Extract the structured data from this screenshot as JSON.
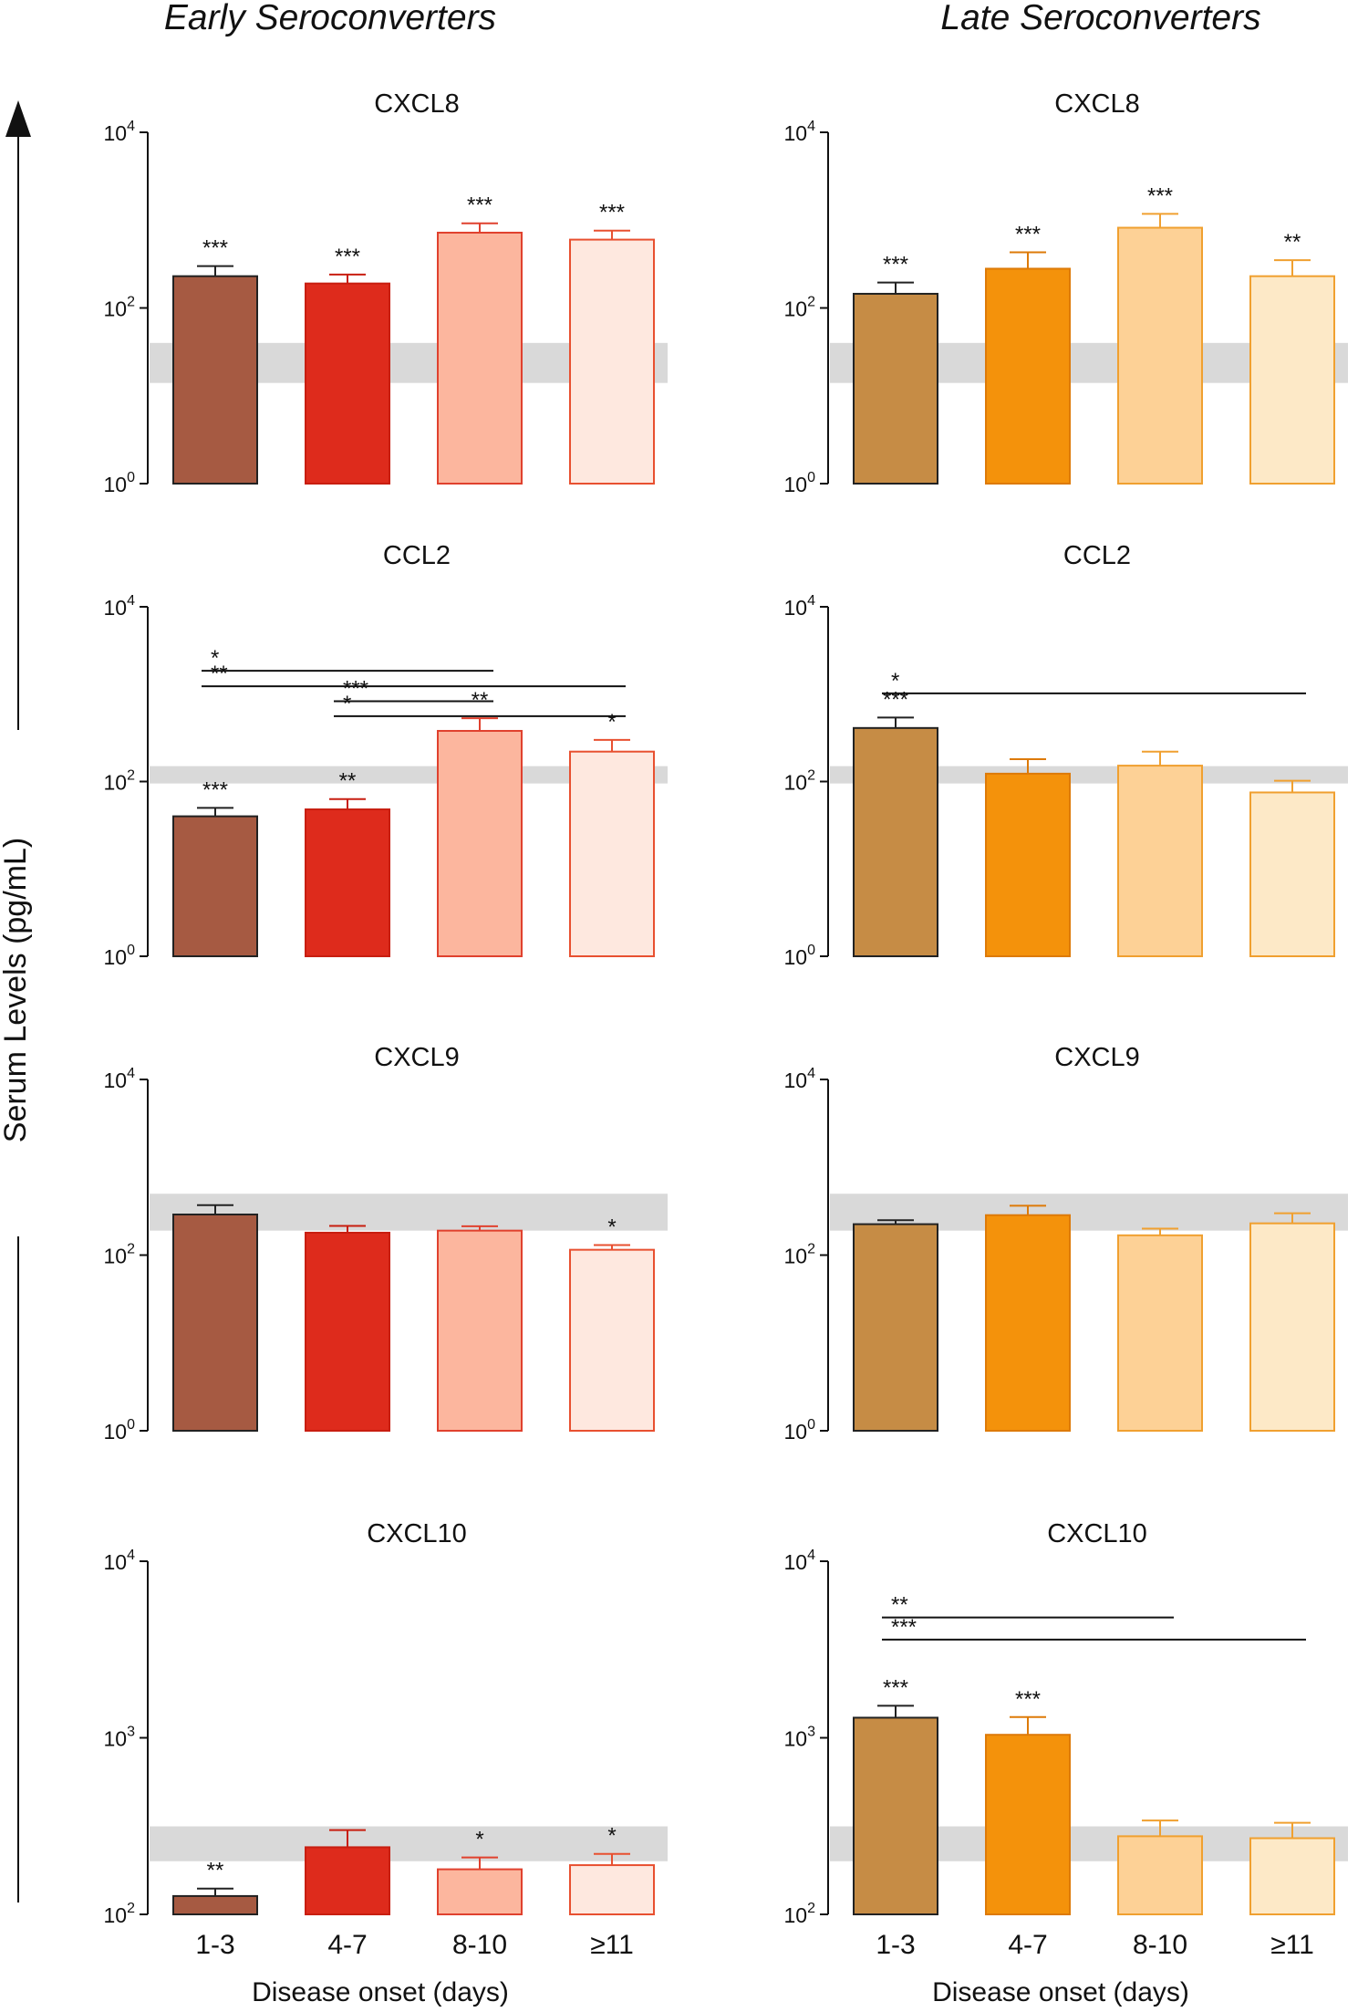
{
  "figure": {
    "column_titles": [
      "Early Seroconverters",
      "Late Seroconverters"
    ],
    "y_axis_label": "Serum Levels (pg/mL)",
    "x_axis_label": "Disease onset (days)",
    "colors": {
      "early": {
        "fills": [
          "#a65a42",
          "#de2b1c",
          "#fcb69e",
          "#fee8df"
        ],
        "edges": [
          "#222222",
          "#c81e10",
          "#e0412e",
          "#e85030"
        ]
      },
      "late": {
        "fills": [
          "#c68c45",
          "#f4920b",
          "#fdd196",
          "#fde9c7"
        ],
        "edges": [
          "#222222",
          "#dd7a08",
          "#f0a030",
          "#f0a030"
        ]
      },
      "reference_band": "#d9d9d9"
    }
  },
  "chart_data": [
    {
      "type": "bar",
      "column": "early",
      "title": "CXCL8",
      "yscale": "log",
      "ylim": [
        1,
        10000
      ],
      "yticks": [
        "10^0",
        "10^2",
        "10^4"
      ],
      "categories": [
        "1-3",
        "4-7",
        "8-10",
        "≥11"
      ],
      "values": [
        230,
        190,
        720,
        600
      ],
      "error_upper": [
        300,
        240,
        920,
        760
      ],
      "significance": [
        "***",
        "***",
        "***",
        "***"
      ],
      "reference_band": [
        14,
        40
      ],
      "comparisons": [],
      "xlabel": "",
      "show_ticklabels": false
    },
    {
      "type": "bar",
      "column": "late",
      "title": "CXCL8",
      "yscale": "log",
      "ylim": [
        1,
        10000
      ],
      "yticks": [
        "10^0",
        "10^2",
        "10^4"
      ],
      "categories": [
        "1-3",
        "4-7",
        "8-10",
        "≥11"
      ],
      "values": [
        145,
        280,
        820,
        230
      ],
      "error_upper": [
        195,
        430,
        1180,
        350
      ],
      "significance": [
        "***",
        "***",
        "***",
        "**"
      ],
      "reference_band": [
        14,
        40
      ],
      "comparisons": [],
      "xlabel": "",
      "show_ticklabels": false
    },
    {
      "type": "bar",
      "column": "early",
      "title": "CCL2",
      "yscale": "log",
      "ylim": [
        1,
        10000
      ],
      "yticks": [
        "10^0",
        "10^2",
        "10^4"
      ],
      "categories": [
        "1-3",
        "4-7",
        "8-10",
        "≥11"
      ],
      "values": [
        40,
        48,
        380,
        220
      ],
      "error_upper": [
        50,
        63,
        530,
        300
      ],
      "significance": [
        "***",
        "**",
        "**",
        "*"
      ],
      "reference_band": [
        95,
        150
      ],
      "comparisons": [
        {
          "from": 0,
          "to": 2,
          "label": "*",
          "level": 1850
        },
        {
          "from": 0,
          "to": 3,
          "label": "**",
          "level": 1230
        },
        {
          "from": 1,
          "to": 2,
          "label": "***",
          "level": 830
        },
        {
          "from": 1,
          "to": 3,
          "label": "*",
          "level": 560
        }
      ],
      "xlabel": "",
      "show_ticklabels": false
    },
    {
      "type": "bar",
      "column": "late",
      "title": "CCL2",
      "yscale": "log",
      "ylim": [
        1,
        10000
      ],
      "yticks": [
        "10^0",
        "10^2",
        "10^4"
      ],
      "categories": [
        "1-3",
        "4-7",
        "8-10",
        "≥11"
      ],
      "values": [
        410,
        123,
        152,
        75
      ],
      "error_upper": [
        540,
        180,
        220,
        102
      ],
      "significance": [
        "***",
        "",
        "",
        ""
      ],
      "reference_band": [
        95,
        150
      ],
      "comparisons": [
        {
          "from": 0,
          "to": 3,
          "label": "*",
          "level": 1020
        }
      ],
      "xlabel": "",
      "show_ticklabels": false
    },
    {
      "type": "bar",
      "column": "early",
      "title": "CXCL9",
      "yscale": "log",
      "ylim": [
        1,
        10000
      ],
      "yticks": [
        "10^0",
        "10^2",
        "10^4"
      ],
      "categories": [
        "1-3",
        "4-7",
        "8-10",
        "≥11"
      ],
      "values": [
        290,
        180,
        190,
        115
      ],
      "error_upper": [
        370,
        215,
        213,
        130
      ],
      "significance": [
        "",
        "",
        "",
        "*"
      ],
      "reference_band": [
        190,
        500
      ],
      "comparisons": [],
      "xlabel": "",
      "show_ticklabels": false
    },
    {
      "type": "bar",
      "column": "late",
      "title": "CXCL9",
      "yscale": "log",
      "ylim": [
        1,
        10000
      ],
      "yticks": [
        "10^0",
        "10^2",
        "10^4"
      ],
      "categories": [
        "1-3",
        "4-7",
        "8-10",
        "≥11"
      ],
      "values": [
        225,
        285,
        168,
        230
      ],
      "error_upper": [
        250,
        365,
        200,
        300
      ],
      "significance": [
        "",
        "",
        "",
        ""
      ],
      "reference_band": [
        190,
        500
      ],
      "comparisons": [],
      "xlabel": "",
      "show_ticklabels": false
    },
    {
      "type": "bar",
      "column": "early",
      "title": "CXCL10",
      "yscale": "log",
      "ylim": [
        100,
        10000
      ],
      "yticks": [
        "10^2",
        "10^3",
        "10^4"
      ],
      "categories": [
        "1-3",
        "4-7",
        "8-10",
        "≥11"
      ],
      "values": [
        127,
        240,
        180,
        190
      ],
      "error_upper": [
        140,
        300,
        210,
        220
      ],
      "significance": [
        "**",
        "",
        "*",
        "*"
      ],
      "reference_band": [
        200,
        315
      ],
      "comparisons": [],
      "xlabel": "Disease onset (days)",
      "show_ticklabels": true
    },
    {
      "type": "bar",
      "column": "late",
      "title": "CXCL10",
      "yscale": "log",
      "ylim": [
        100,
        10000
      ],
      "yticks": [
        "10^2",
        "10^3",
        "10^4"
      ],
      "categories": [
        "1-3",
        "4-7",
        "8-10",
        "≥11"
      ],
      "values": [
        1300,
        1040,
        277,
        270
      ],
      "error_upper": [
        1520,
        1310,
        340,
        330
      ],
      "significance": [
        "***",
        "***",
        "",
        ""
      ],
      "reference_band": [
        200,
        315
      ],
      "comparisons": [
        {
          "from": 0,
          "to": 2,
          "label": "**",
          "level": 4800
        },
        {
          "from": 0,
          "to": 3,
          "label": "***",
          "level": 3600
        }
      ],
      "xlabel": "Disease onset (days)",
      "show_ticklabels": true
    }
  ]
}
